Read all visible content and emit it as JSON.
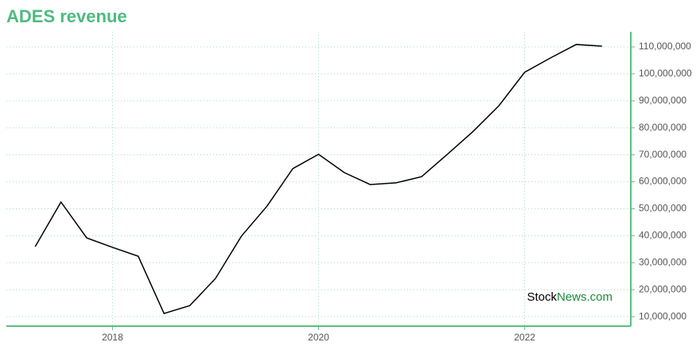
{
  "chart_data": {
    "type": "line",
    "title": "ADES revenue",
    "x": [
      2017.25,
      2017.5,
      2017.75,
      2018,
      2018.25,
      2018.5,
      2018.75,
      2019,
      2019.25,
      2019.5,
      2019.75,
      2020,
      2020.25,
      2020.5,
      2020.75,
      2021,
      2021.25,
      2021.5,
      2021.75,
      2022,
      2022.25,
      2022.5,
      2022.75
    ],
    "series": [
      {
        "name": "ADES revenue",
        "color": "#000000",
        "values": [
          36000000,
          52500000,
          39200000,
          35700000,
          32400000,
          11200000,
          14100000,
          24200000,
          39800000,
          51000000,
          64900000,
          70200000,
          63400000,
          59000000,
          59600000,
          61900000,
          70200000,
          78700000,
          88200000,
          100600000,
          105900000,
          110900000,
          110300000
        ]
      }
    ],
    "xlim": [
      2016.97,
      2023.03
    ],
    "xticks": [
      2018,
      2020,
      2022
    ],
    "ylim": [
      6500000,
      115600000
    ],
    "yticks": [
      {
        "value": 10000000,
        "label": "10,000,000"
      },
      {
        "value": 20000000,
        "label": "20,000,000"
      },
      {
        "value": 30000000,
        "label": "30,000,000"
      },
      {
        "value": 40000000,
        "label": "40,000,000"
      },
      {
        "value": 50000000,
        "label": "50,000,000"
      },
      {
        "value": 60000000,
        "label": "60,000,000"
      },
      {
        "value": 70000000,
        "label": "70,000,000"
      },
      {
        "value": 80000000,
        "label": "80,000,000"
      },
      {
        "value": 90000000,
        "label": "90,000,000"
      },
      {
        "value": 100000000,
        "label": "100,000,000"
      },
      {
        "value": 110000000,
        "label": "110,000,000"
      }
    ],
    "grid": true,
    "axis_color": "#5cbf7f",
    "watermark": [
      "Stock",
      "News.com"
    ]
  }
}
